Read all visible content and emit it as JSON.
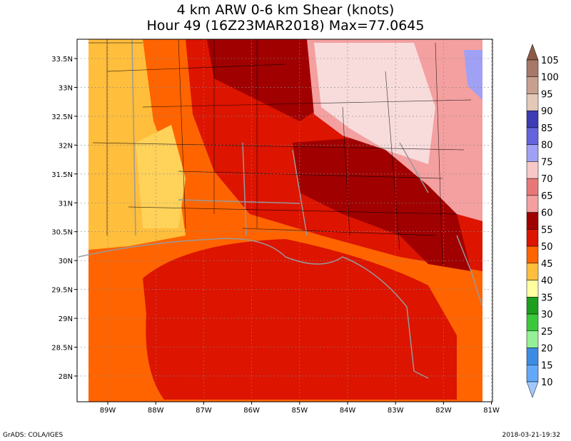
{
  "title": [
    "4 km ARW 0-6 km Shear (knots)",
    "Hour 49 (16Z23MAR2018) Max=77.0645"
  ],
  "lat_labels": [
    "33.5N",
    "33N",
    "32.5N",
    "32N",
    "31.5N",
    "31N",
    "30.5N",
    "30N",
    "29.5N",
    "29N",
    "28.5N",
    "28N"
  ],
  "lon_labels": [
    "89W",
    "88W",
    "87W",
    "86W",
    "85W",
    "84W",
    "83W",
    "82W",
    "81W"
  ],
  "colorbar": {
    "labels": [
      "105",
      "100",
      "95",
      "90",
      "85",
      "80",
      "75",
      "70",
      "65",
      "60",
      "55",
      "50",
      "45",
      "40",
      "35",
      "30",
      "25",
      "20",
      "15",
      "10"
    ],
    "colors": [
      "#8c5a46",
      "#a8786a",
      "#c8a090",
      "#e4c8b8",
      "#3c3cb4",
      "#6464dc",
      "#a0a0f4",
      "#f8c8c8",
      "#e87878",
      "#f4a0a0",
      "#a00000",
      "#dc1400",
      "#ff6400",
      "#ffbe3c",
      "#ffffa0",
      "#1e9e1e",
      "#3cc83c",
      "#96f096",
      "#3c8ce6",
      "#64a8f8",
      "#a0c8ff"
    ]
  },
  "footer": {
    "left": "GrADS: COLA/IGES",
    "right": "2018-03-21-19:32"
  }
}
